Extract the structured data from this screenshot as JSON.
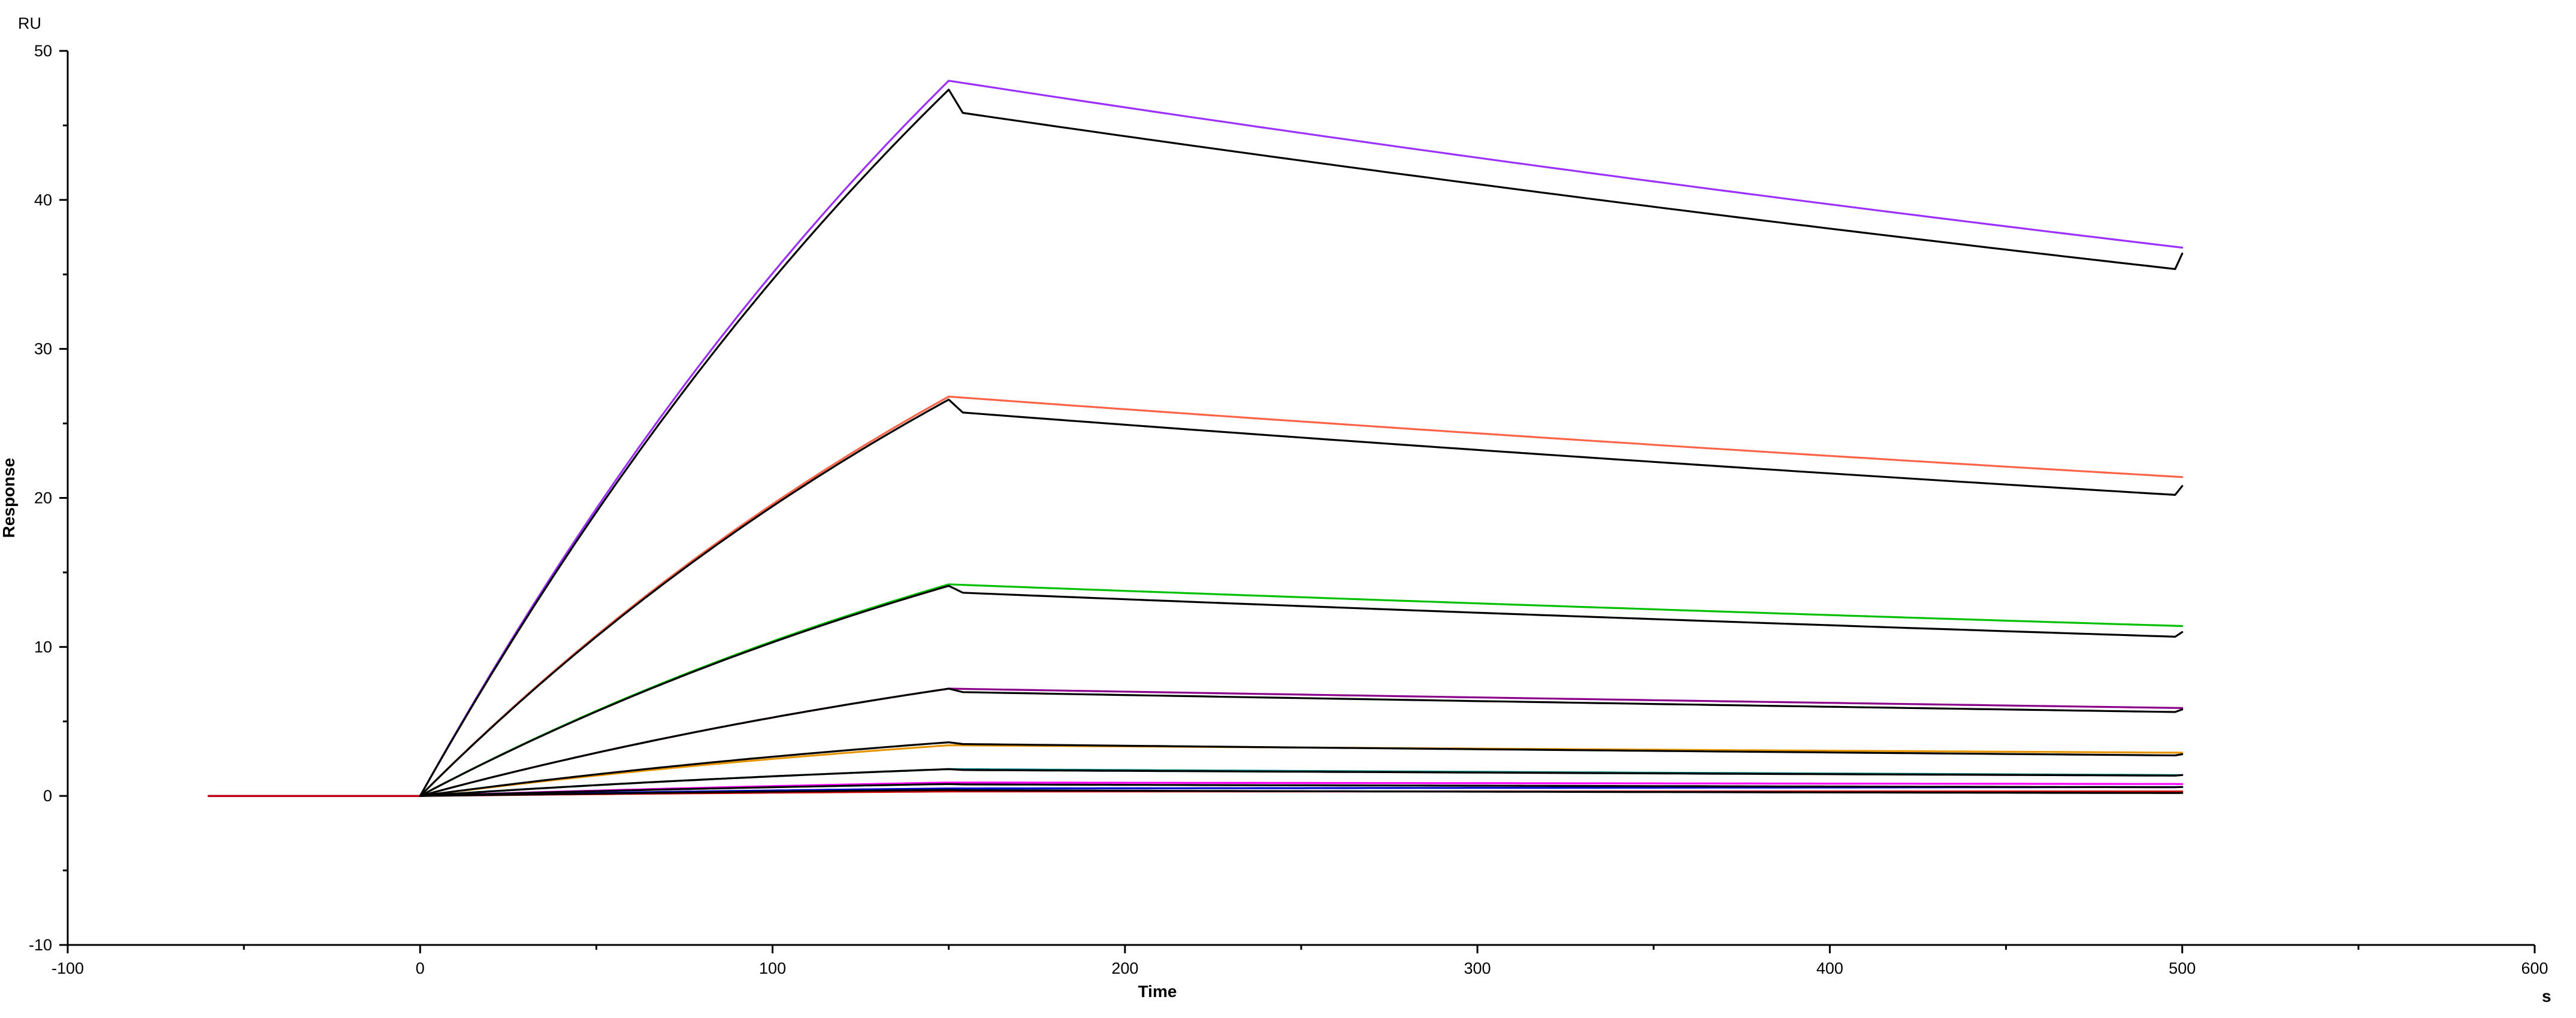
{
  "chart_data": {
    "type": "line",
    "title": "",
    "xlabel": "Time",
    "ylabel": "Response",
    "y_unit": "RU",
    "x_unit": "s",
    "xlim": [
      -100,
      600
    ],
    "ylim": [
      -10,
      50
    ],
    "x_ticks": [
      -100,
      0,
      100,
      200,
      300,
      400,
      500,
      600
    ],
    "y_ticks": [
      -10,
      0,
      10,
      20,
      30,
      40,
      50
    ],
    "x_tick_labels": [
      "-100",
      "0",
      "100",
      "200",
      "300",
      "400",
      "500",
      "600"
    ],
    "y_tick_labels": [
      "-10",
      "0",
      "10",
      "20",
      "30",
      "40",
      "50"
    ],
    "grid": false,
    "legend": "none",
    "baseline_start": -60,
    "association_start": 0,
    "dissociation_start": 150,
    "end": 500,
    "series": [
      {
        "color": "#9b30ff",
        "peak": 48.0,
        "end_value": 36.8
      },
      {
        "color": "#ff6347",
        "peak": 26.8,
        "end_value": 21.4
      },
      {
        "color": "#00c000",
        "peak": 14.2,
        "end_value": 11.4
      },
      {
        "color": "#8b008b",
        "peak": 7.2,
        "end_value": 5.9
      },
      {
        "color": "#e69500",
        "peak": 3.4,
        "end_value": 2.9
      },
      {
        "color": "#008b8b",
        "peak": 1.8,
        "end_value": 1.4
      },
      {
        "color": "#ff00ff",
        "peak": 0.9,
        "end_value": 0.8
      },
      {
        "color": "#0000cd",
        "peak": 0.5,
        "end_value": 0.6
      },
      {
        "color": "#cc0000",
        "peak": 0.3,
        "end_value": 0.3
      }
    ],
    "fits": [
      {
        "color": "#000000",
        "peak": 47.4,
        "end_value": 36.4
      },
      {
        "color": "#000000",
        "peak": 26.6,
        "end_value": 20.8
      },
      {
        "color": "#000000",
        "peak": 14.1,
        "end_value": 11.0
      },
      {
        "color": "#000000",
        "peak": 7.2,
        "end_value": 5.8
      },
      {
        "color": "#000000",
        "peak": 3.6,
        "end_value": 2.8
      },
      {
        "color": "#000000",
        "peak": 1.8,
        "end_value": 1.4
      },
      {
        "color": "#000000",
        "peak": 0.8,
        "end_value": 0.6
      },
      {
        "color": "#000000",
        "peak": 0.4,
        "end_value": 0.2
      }
    ]
  }
}
